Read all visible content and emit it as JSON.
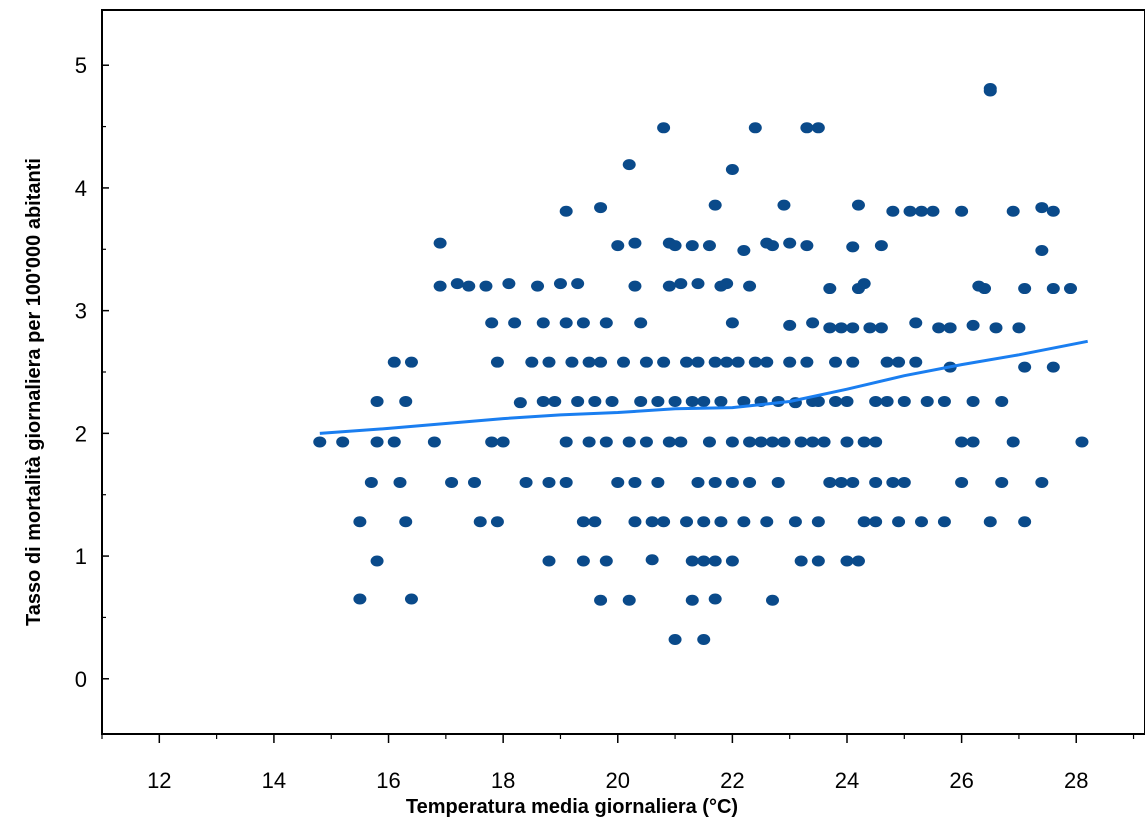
{
  "chart_data": {
    "type": "scatter",
    "title": "",
    "xlabel": "Temperatura media giornaliera (°C)",
    "ylabel": "Tasso di mortalità giornaliera per 100'000 abitanti",
    "xlim": [
      11,
      29.2
    ],
    "ylim": [
      -0.45,
      5.45
    ],
    "xticks": [
      12,
      14,
      16,
      18,
      20,
      22,
      24,
      26,
      28
    ],
    "yticks": [
      0,
      1,
      2,
      3,
      4,
      5
    ],
    "grid": false,
    "colors": {
      "points": "#0a4a8a",
      "trend": "#1a7ef0",
      "axes": "#000000"
    },
    "series": [
      {
        "type": "scatter",
        "points": [
          [
            14.8,
            1.93
          ],
          [
            15.2,
            1.93
          ],
          [
            15.5,
            1.28
          ],
          [
            15.5,
            0.65
          ],
          [
            15.7,
            1.6
          ],
          [
            15.8,
            0.96
          ],
          [
            15.8,
            1.93
          ],
          [
            15.8,
            2.26
          ],
          [
            16.1,
            2.58
          ],
          [
            16.1,
            1.93
          ],
          [
            16.2,
            1.6
          ],
          [
            16.3,
            1.28
          ],
          [
            16.3,
            2.26
          ],
          [
            16.4,
            2.58
          ],
          [
            16.4,
            0.65
          ],
          [
            16.8,
            1.93
          ],
          [
            16.9,
            3.2
          ],
          [
            16.9,
            3.55
          ],
          [
            17.1,
            1.6
          ],
          [
            17.2,
            3.22
          ],
          [
            17.4,
            3.2
          ],
          [
            17.5,
            1.6
          ],
          [
            17.6,
            1.28
          ],
          [
            17.7,
            3.2
          ],
          [
            17.8,
            2.9
          ],
          [
            17.8,
            1.93
          ],
          [
            17.9,
            1.28
          ],
          [
            17.9,
            2.58
          ],
          [
            18.0,
            1.93
          ],
          [
            18.1,
            3.22
          ],
          [
            18.2,
            2.9
          ],
          [
            18.3,
            2.25
          ],
          [
            18.4,
            1.6
          ],
          [
            18.5,
            2.58
          ],
          [
            18.6,
            3.2
          ],
          [
            18.7,
            2.9
          ],
          [
            18.7,
            2.26
          ],
          [
            18.8,
            2.58
          ],
          [
            18.8,
            1.6
          ],
          [
            18.8,
            0.96
          ],
          [
            18.9,
            2.26
          ],
          [
            19.0,
            3.22
          ],
          [
            19.1,
            3.81
          ],
          [
            19.1,
            2.9
          ],
          [
            19.1,
            1.93
          ],
          [
            19.1,
            1.6
          ],
          [
            19.2,
            2.58
          ],
          [
            19.3,
            2.26
          ],
          [
            19.3,
            3.22
          ],
          [
            19.4,
            2.9
          ],
          [
            19.4,
            1.28
          ],
          [
            19.4,
            0.96
          ],
          [
            19.5,
            2.58
          ],
          [
            19.5,
            1.93
          ],
          [
            19.6,
            2.26
          ],
          [
            19.6,
            1.28
          ],
          [
            19.7,
            3.84
          ],
          [
            19.7,
            2.58
          ],
          [
            19.7,
            0.64
          ],
          [
            19.8,
            2.9
          ],
          [
            19.8,
            1.93
          ],
          [
            19.8,
            0.96
          ],
          [
            19.9,
            2.26
          ],
          [
            20.0,
            3.53
          ],
          [
            20.0,
            1.6
          ],
          [
            20.1,
            2.58
          ],
          [
            20.2,
            4.19
          ],
          [
            20.2,
            1.93
          ],
          [
            20.2,
            0.64
          ],
          [
            20.3,
            3.55
          ],
          [
            20.3,
            3.2
          ],
          [
            20.3,
            1.6
          ],
          [
            20.3,
            1.28
          ],
          [
            20.4,
            2.9
          ],
          [
            20.4,
            2.26
          ],
          [
            20.5,
            2.58
          ],
          [
            20.5,
            1.93
          ],
          [
            20.6,
            1.28
          ],
          [
            20.6,
            0.97
          ],
          [
            20.7,
            2.26
          ],
          [
            20.7,
            1.6
          ],
          [
            20.8,
            4.49
          ],
          [
            20.8,
            2.58
          ],
          [
            20.8,
            1.28
          ],
          [
            20.9,
            3.55
          ],
          [
            20.9,
            3.2
          ],
          [
            20.9,
            1.93
          ],
          [
            21.0,
            3.53
          ],
          [
            21.0,
            2.26
          ],
          [
            21.0,
            0.32
          ],
          [
            21.1,
            3.22
          ],
          [
            21.1,
            1.93
          ],
          [
            21.2,
            2.58
          ],
          [
            21.2,
            1.28
          ],
          [
            21.3,
            3.53
          ],
          [
            21.3,
            2.26
          ],
          [
            21.3,
            0.96
          ],
          [
            21.3,
            0.64
          ],
          [
            21.4,
            3.22
          ],
          [
            21.4,
            2.58
          ],
          [
            21.4,
            1.6
          ],
          [
            21.5,
            2.26
          ],
          [
            21.5,
            1.28
          ],
          [
            21.5,
            0.96
          ],
          [
            21.5,
            0.32
          ],
          [
            21.6,
            3.53
          ],
          [
            21.6,
            1.93
          ],
          [
            21.7,
            3.86
          ],
          [
            21.7,
            2.58
          ],
          [
            21.7,
            1.6
          ],
          [
            21.7,
            0.96
          ],
          [
            21.7,
            0.65
          ],
          [
            21.8,
            3.2
          ],
          [
            21.8,
            2.26
          ],
          [
            21.8,
            1.28
          ],
          [
            21.9,
            3.22
          ],
          [
            21.9,
            2.58
          ],
          [
            22.0,
            4.15
          ],
          [
            22.0,
            2.9
          ],
          [
            22.0,
            1.93
          ],
          [
            22.0,
            1.6
          ],
          [
            22.0,
            0.96
          ],
          [
            22.1,
            2.58
          ],
          [
            22.2,
            3.49
          ],
          [
            22.2,
            2.26
          ],
          [
            22.2,
            1.28
          ],
          [
            22.3,
            3.2
          ],
          [
            22.3,
            1.93
          ],
          [
            22.3,
            1.6
          ],
          [
            22.4,
            4.49
          ],
          [
            22.4,
            2.58
          ],
          [
            22.5,
            2.26
          ],
          [
            22.5,
            1.93
          ],
          [
            22.6,
            3.55
          ],
          [
            22.6,
            2.58
          ],
          [
            22.6,
            1.28
          ],
          [
            22.7,
            3.53
          ],
          [
            22.7,
            1.93
          ],
          [
            22.7,
            0.64
          ],
          [
            22.8,
            2.26
          ],
          [
            22.8,
            1.6
          ],
          [
            22.9,
            3.86
          ],
          [
            22.9,
            1.93
          ],
          [
            23.0,
            3.55
          ],
          [
            23.0,
            2.88
          ],
          [
            23.0,
            2.58
          ],
          [
            23.1,
            2.25
          ],
          [
            23.1,
            1.28
          ],
          [
            23.2,
            1.93
          ],
          [
            23.2,
            0.96
          ],
          [
            23.3,
            4.49
          ],
          [
            23.3,
            3.53
          ],
          [
            23.3,
            2.58
          ],
          [
            23.4,
            2.26
          ],
          [
            23.4,
            2.9
          ],
          [
            23.4,
            1.93
          ],
          [
            23.5,
            4.49
          ],
          [
            23.5,
            2.26
          ],
          [
            23.5,
            1.28
          ],
          [
            23.5,
            0.96
          ],
          [
            23.6,
            1.93
          ],
          [
            23.7,
            3.18
          ],
          [
            23.7,
            2.86
          ],
          [
            23.7,
            1.6
          ],
          [
            23.8,
            2.58
          ],
          [
            23.8,
            2.26
          ],
          [
            23.9,
            2.86
          ],
          [
            23.9,
            1.6
          ],
          [
            24.0,
            2.26
          ],
          [
            24.0,
            1.93
          ],
          [
            24.0,
            0.96
          ],
          [
            24.1,
            3.52
          ],
          [
            24.1,
            2.86
          ],
          [
            24.1,
            2.58
          ],
          [
            24.1,
            1.6
          ],
          [
            24.2,
            3.86
          ],
          [
            24.2,
            3.18
          ],
          [
            24.2,
            0.96
          ],
          [
            24.3,
            3.22
          ],
          [
            24.3,
            1.93
          ],
          [
            24.3,
            1.28
          ],
          [
            24.4,
            2.86
          ],
          [
            24.5,
            2.26
          ],
          [
            24.5,
            1.6
          ],
          [
            24.5,
            1.93
          ],
          [
            24.5,
            1.28
          ],
          [
            24.6,
            3.53
          ],
          [
            24.6,
            2.86
          ],
          [
            24.7,
            2.58
          ],
          [
            24.7,
            2.26
          ],
          [
            24.8,
            3.81
          ],
          [
            24.8,
            1.6
          ],
          [
            24.9,
            1.28
          ],
          [
            24.9,
            2.58
          ],
          [
            25.0,
            1.6
          ],
          [
            25.0,
            2.26
          ],
          [
            25.1,
            3.81
          ],
          [
            25.2,
            2.58
          ],
          [
            25.2,
            2.9
          ],
          [
            25.3,
            3.81
          ],
          [
            25.3,
            1.28
          ],
          [
            25.4,
            2.26
          ],
          [
            25.5,
            3.81
          ],
          [
            25.6,
            2.86
          ],
          [
            25.7,
            2.26
          ],
          [
            25.7,
            1.28
          ],
          [
            25.8,
            2.86
          ],
          [
            25.8,
            2.54
          ],
          [
            26.0,
            3.81
          ],
          [
            26.0,
            1.93
          ],
          [
            26.0,
            1.6
          ],
          [
            26.2,
            2.88
          ],
          [
            26.2,
            2.26
          ],
          [
            26.2,
            1.93
          ],
          [
            26.3,
            3.2
          ],
          [
            26.4,
            3.18
          ],
          [
            26.5,
            4.79
          ],
          [
            26.5,
            4.81
          ],
          [
            26.5,
            1.28
          ],
          [
            26.6,
            2.86
          ],
          [
            26.7,
            2.26
          ],
          [
            26.7,
            1.6
          ],
          [
            26.9,
            3.81
          ],
          [
            26.9,
            1.93
          ],
          [
            27.0,
            2.86
          ],
          [
            27.1,
            2.54
          ],
          [
            27.1,
            3.18
          ],
          [
            27.1,
            1.28
          ],
          [
            27.4,
            3.84
          ],
          [
            27.4,
            3.49
          ],
          [
            27.4,
            1.6
          ],
          [
            27.6,
            3.81
          ],
          [
            27.6,
            3.18
          ],
          [
            27.6,
            2.54
          ],
          [
            27.9,
            3.18
          ],
          [
            28.1,
            1.93
          ]
        ]
      },
      {
        "type": "line",
        "x": [
          14.8,
          16.0,
          17.0,
          18.0,
          19.0,
          20.0,
          21.0,
          22.0,
          23.0,
          24.0,
          25.0,
          26.0,
          27.0,
          28.2
        ],
        "y": [
          2.0,
          2.04,
          2.08,
          2.12,
          2.15,
          2.17,
          2.2,
          2.21,
          2.26,
          2.36,
          2.47,
          2.56,
          2.64,
          2.75
        ]
      }
    ]
  }
}
